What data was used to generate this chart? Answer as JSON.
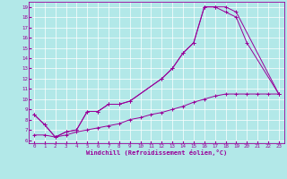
{
  "xlabel": "Windchill (Refroidissement éolien,°C)",
  "bg_color": "#b2e8e8",
  "grid_color": "#ffffff",
  "line_color": "#990099",
  "xlim": [
    -0.5,
    23.5
  ],
  "ylim": [
    5.7,
    19.5
  ],
  "xticks": [
    0,
    1,
    2,
    3,
    4,
    5,
    6,
    7,
    8,
    9,
    10,
    11,
    12,
    13,
    14,
    15,
    16,
    17,
    18,
    19,
    20,
    21,
    22,
    23
  ],
  "yticks": [
    6,
    7,
    8,
    9,
    10,
    11,
    12,
    13,
    14,
    15,
    16,
    17,
    18,
    19
  ],
  "series": [
    {
      "x": [
        0,
        1,
        2,
        3,
        4,
        5,
        6,
        7,
        8,
        9,
        12,
        13,
        14,
        15,
        16,
        17,
        18,
        19,
        23
      ],
      "y": [
        8.5,
        7.5,
        6.3,
        6.8,
        7.0,
        8.8,
        8.8,
        9.5,
        9.5,
        9.8,
        12.0,
        13.0,
        14.5,
        15.5,
        19.0,
        19.0,
        19.0,
        18.5,
        10.5
      ]
    },
    {
      "x": [
        0,
        1,
        2,
        3,
        4,
        5,
        6,
        7,
        8,
        9,
        12,
        13,
        14,
        15,
        16,
        17,
        18,
        19,
        20,
        23
      ],
      "y": [
        8.5,
        7.5,
        6.3,
        6.8,
        7.0,
        8.8,
        8.8,
        9.5,
        9.5,
        9.8,
        12.0,
        13.0,
        14.5,
        15.5,
        19.0,
        19.0,
        18.5,
        18.0,
        15.5,
        10.5
      ]
    },
    {
      "x": [
        0,
        1,
        2,
        3,
        4,
        5,
        6,
        7,
        8,
        9,
        10,
        11,
        12,
        13,
        14,
        15,
        16,
        17,
        18,
        19,
        20,
        21,
        22,
        23
      ],
      "y": [
        6.5,
        6.5,
        6.3,
        6.5,
        6.8,
        7.0,
        7.2,
        7.4,
        7.6,
        8.0,
        8.2,
        8.5,
        8.7,
        9.0,
        9.3,
        9.7,
        10.0,
        10.3,
        10.5,
        10.5,
        10.5,
        10.5,
        10.5,
        10.5
      ]
    }
  ]
}
